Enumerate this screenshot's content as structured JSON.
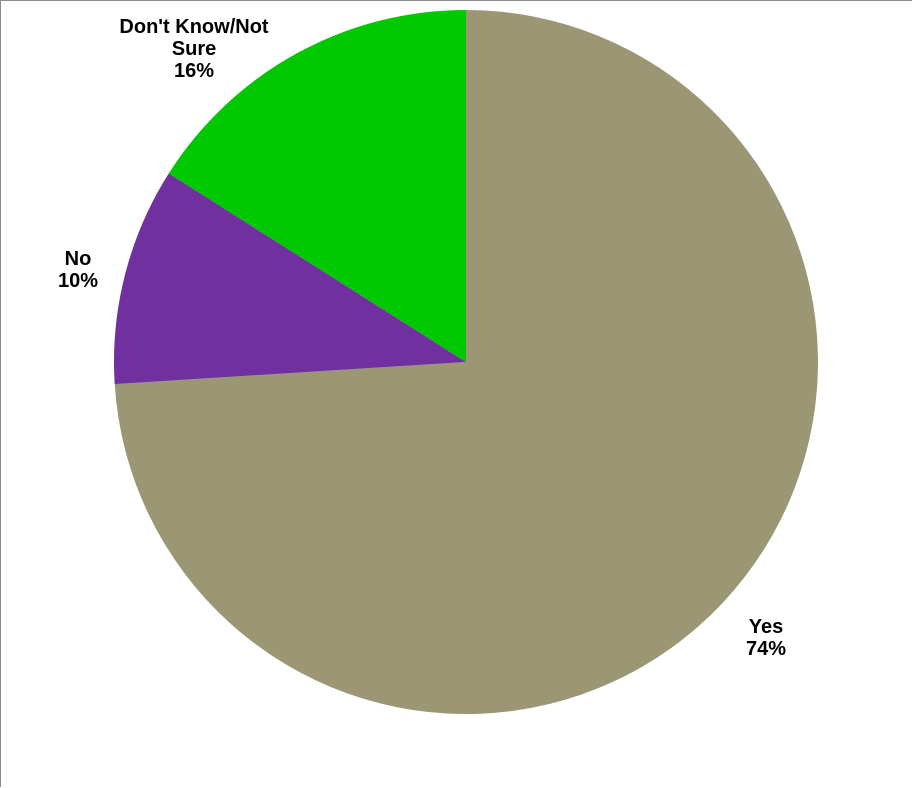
{
  "chart_data": {
    "type": "pie",
    "title": "",
    "slices": [
      {
        "label": "Yes",
        "value": 74,
        "value_label": "74%",
        "color": "#9b9774"
      },
      {
        "label": "No",
        "value": 10,
        "value_label": "10%",
        "color": "#7030a0"
      },
      {
        "label": "Don't Know/Not Sure",
        "value": 16,
        "value_label": "16%",
        "color": "#00c800"
      }
    ],
    "start_angle": "12 o'clock",
    "direction": "clockwise",
    "legend": "none (labels on slices)"
  }
}
